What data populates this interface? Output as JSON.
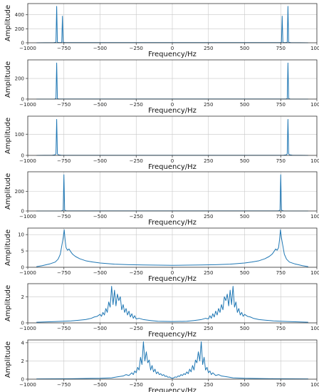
{
  "chart_data": [
    {
      "type": "line",
      "xlabel": "Frequency/Hz",
      "ylabel": "Amplitude",
      "xlim": [
        -1000,
        1000
      ],
      "ylim": [
        0,
        560
      ],
      "xticks": [
        -1000,
        -750,
        -500,
        -250,
        0,
        250,
        500,
        750,
        1000
      ],
      "yticks": [
        0,
        200,
        400
      ],
      "grid": true,
      "line_color": "#1f77b4",
      "series": [
        {
          "x": [
            -940,
            -820,
            -805,
            -800,
            -795,
            -780,
            -765,
            -760,
            -755,
            -740,
            740,
            755,
            760,
            765,
            780,
            795,
            800,
            805,
            820,
            940
          ],
          "values": [
            0,
            2,
            6,
            520,
            6,
            2,
            5,
            380,
            5,
            2,
            2,
            5,
            380,
            5,
            2,
            6,
            520,
            6,
            2,
            0
          ]
        }
      ]
    },
    {
      "type": "line",
      "xlabel": "Frequency/Hz",
      "ylabel": "Amplitude",
      "xlim": [
        -1000,
        1000
      ],
      "ylim": [
        0,
        380
      ],
      "xticks": [
        -1000,
        -750,
        -500,
        -250,
        0,
        250,
        500,
        750,
        1000
      ],
      "yticks": [
        0,
        200
      ],
      "grid": true,
      "line_color": "#1f77b4",
      "series": [
        {
          "x": [
            -940,
            -815,
            -805,
            -800,
            -795,
            -785,
            785,
            795,
            800,
            805,
            815,
            940
          ],
          "values": [
            0,
            1,
            4,
            350,
            4,
            1,
            1,
            4,
            350,
            4,
            1,
            0
          ]
        }
      ]
    },
    {
      "type": "line",
      "xlabel": "Frequency/Hz",
      "ylabel": "Amplitude",
      "xlim": [
        -1000,
        1000
      ],
      "ylim": [
        0,
        185
      ],
      "xticks": [
        -1000,
        -750,
        -500,
        -250,
        0,
        250,
        500,
        750,
        1000
      ],
      "yticks": [
        0,
        100
      ],
      "grid": true,
      "line_color": "#1f77b4",
      "series": [
        {
          "x": [
            -940,
            -830,
            -810,
            -805,
            -800,
            -795,
            -790,
            -770,
            -700,
            0,
            700,
            770,
            790,
            795,
            800,
            805,
            810,
            830,
            940
          ],
          "values": [
            0,
            1,
            3,
            8,
            170,
            8,
            3,
            1,
            0.5,
            0.3,
            0.5,
            1,
            3,
            8,
            170,
            8,
            3,
            1,
            0
          ]
        }
      ]
    },
    {
      "type": "line",
      "xlabel": "Frequency/Hz",
      "ylabel": "Amplitude",
      "xlim": [
        -1000,
        1000
      ],
      "ylim": [
        0,
        400
      ],
      "xticks": [
        -1000,
        -750,
        -500,
        -250,
        0,
        250,
        500,
        750,
        1000
      ],
      "yticks": [
        0,
        200
      ],
      "grid": true,
      "line_color": "#1f77b4",
      "series": [
        {
          "x": [
            -940,
            -770,
            -760,
            -755,
            -750,
            -745,
            -740,
            -730,
            730,
            740,
            745,
            750,
            755,
            760,
            770,
            940
          ],
          "values": [
            0,
            1,
            4,
            10,
            370,
            10,
            4,
            1,
            1,
            4,
            10,
            370,
            10,
            4,
            1,
            0
          ]
        }
      ]
    },
    {
      "type": "line",
      "xlabel": "Frequency/Hz",
      "ylabel": "Amplitude",
      "xlim": [
        -1000,
        1000
      ],
      "ylim": [
        0,
        12
      ],
      "xticks": [
        -1000,
        -750,
        -500,
        -250,
        0,
        250,
        500,
        750,
        1000
      ],
      "yticks": [
        0,
        5,
        10
      ],
      "grid": true,
      "line_color": "#1f77b4",
      "series": [
        {
          "x": [
            -940,
            -900,
            -850,
            -810,
            -790,
            -775,
            -765,
            -755,
            -748,
            -742,
            -735,
            -725,
            -715,
            -700,
            -690,
            -670,
            -640,
            -600,
            -550,
            -500,
            -400,
            -300,
            -200,
            -100,
            0,
            100,
            200,
            300,
            400,
            500,
            550,
            600,
            640,
            670,
            690,
            700,
            715,
            725,
            735,
            742,
            748,
            755,
            765,
            775,
            790,
            810,
            850,
            900,
            940
          ],
          "values": [
            0.2,
            0.5,
            1.0,
            1.6,
            2.5,
            4.0,
            6.5,
            9.0,
            11.5,
            8.5,
            6.0,
            5.2,
            5.6,
            4.6,
            4.0,
            3.3,
            2.6,
            2.0,
            1.6,
            1.3,
            0.95,
            0.8,
            0.7,
            0.65,
            0.6,
            0.65,
            0.7,
            0.8,
            0.95,
            1.3,
            1.6,
            2.0,
            2.6,
            3.3,
            4.0,
            4.6,
            5.6,
            5.2,
            6.0,
            8.5,
            11.5,
            9.0,
            6.5,
            4.0,
            2.5,
            1.6,
            1.0,
            0.5,
            0.2
          ]
        }
      ]
    },
    {
      "type": "line",
      "xlabel": "Frequency/Hz",
      "ylabel": "Amplitude",
      "xlim": [
        -1000,
        1000
      ],
      "ylim": [
        0,
        3.0
      ],
      "xticks": [
        -1000,
        -750,
        -500,
        -250,
        0,
        250,
        500,
        750,
        1000
      ],
      "yticks": [
        0,
        2
      ],
      "grid": true,
      "line_color": "#1f77b4",
      "series": [
        {
          "x": [
            -940,
            -800,
            -700,
            -650,
            -600,
            -560,
            -540,
            -520,
            -500,
            -490,
            -480,
            -470,
            -460,
            -450,
            -440,
            -430,
            -420,
            -410,
            -400,
            -390,
            -380,
            -370,
            -360,
            -350,
            -340,
            -330,
            -320,
            -310,
            -300,
            -290,
            -280,
            -270,
            -260,
            -250,
            -230,
            -200,
            -150,
            -100,
            0,
            100,
            150,
            200,
            230,
            250,
            260,
            270,
            280,
            290,
            300,
            310,
            320,
            330,
            340,
            350,
            360,
            370,
            380,
            390,
            400,
            410,
            420,
            430,
            440,
            450,
            460,
            470,
            480,
            490,
            500,
            520,
            540,
            560,
            600,
            650,
            700,
            800,
            940
          ],
          "values": [
            0.05,
            0.1,
            0.15,
            0.2,
            0.25,
            0.35,
            0.45,
            0.5,
            0.65,
            0.5,
            0.8,
            0.6,
            1.1,
            0.8,
            1.6,
            1.2,
            2.8,
            1.4,
            2.5,
            1.3,
            2.2,
            1.7,
            2.0,
            1.0,
            1.4,
            0.8,
            1.1,
            0.6,
            0.9,
            0.45,
            0.7,
            0.35,
            0.55,
            0.3,
            0.35,
            0.25,
            0.18,
            0.12,
            0.1,
            0.12,
            0.18,
            0.25,
            0.35,
            0.3,
            0.55,
            0.35,
            0.7,
            0.45,
            0.9,
            0.6,
            1.1,
            0.8,
            1.4,
            1.0,
            2.0,
            1.7,
            2.2,
            1.3,
            2.5,
            1.4,
            2.8,
            1.2,
            1.6,
            0.8,
            1.1,
            0.6,
            0.8,
            0.5,
            0.65,
            0.5,
            0.45,
            0.35,
            0.25,
            0.2,
            0.15,
            0.1,
            0.05
          ]
        }
      ]
    },
    {
      "type": "line",
      "xlabel": "Frequency/Hz",
      "ylabel": "Amplitude",
      "xlim": [
        -1000,
        1000
      ],
      "ylim": [
        0,
        4.3
      ],
      "xticks": [
        -1000,
        -750,
        -500,
        -250,
        0,
        250,
        500,
        750,
        1000
      ],
      "yticks": [
        0,
        2,
        4
      ],
      "grid": true,
      "line_color": "#1f77b4",
      "series": [
        {
          "x": [
            -940,
            -700,
            -500,
            -420,
            -380,
            -340,
            -320,
            -300,
            -280,
            -270,
            -260,
            -250,
            -240,
            -230,
            -220,
            -210,
            -200,
            -190,
            -180,
            -170,
            -160,
            -150,
            -140,
            -130,
            -120,
            -110,
            -100,
            -90,
            -80,
            -70,
            -60,
            -50,
            -40,
            -30,
            -20,
            -10,
            0,
            10,
            20,
            30,
            40,
            50,
            60,
            70,
            80,
            90,
            100,
            110,
            120,
            130,
            140,
            150,
            160,
            170,
            180,
            190,
            200,
            210,
            220,
            230,
            240,
            250,
            260,
            270,
            280,
            300,
            320,
            340,
            380,
            420,
            500,
            700,
            940
          ],
          "values": [
            0.03,
            0.05,
            0.1,
            0.15,
            0.25,
            0.35,
            0.5,
            0.4,
            0.7,
            0.5,
            0.9,
            0.7,
            1.3,
            1.0,
            2.4,
            1.6,
            4.1,
            2.0,
            3.0,
            1.8,
            2.1,
            1.0,
            1.5,
            0.8,
            1.1,
            0.6,
            0.8,
            0.5,
            0.6,
            0.4,
            0.5,
            0.3,
            0.35,
            0.2,
            0.25,
            0.15,
            0.1,
            0.15,
            0.25,
            0.2,
            0.35,
            0.3,
            0.5,
            0.4,
            0.6,
            0.5,
            0.8,
            0.6,
            1.1,
            0.8,
            1.5,
            1.0,
            2.1,
            1.8,
            3.0,
            2.0,
            4.1,
            1.6,
            2.4,
            1.0,
            1.3,
            0.7,
            0.9,
            0.5,
            0.7,
            0.4,
            0.5,
            0.35,
            0.25,
            0.15,
            0.1,
            0.05,
            0.03
          ]
        }
      ]
    }
  ]
}
